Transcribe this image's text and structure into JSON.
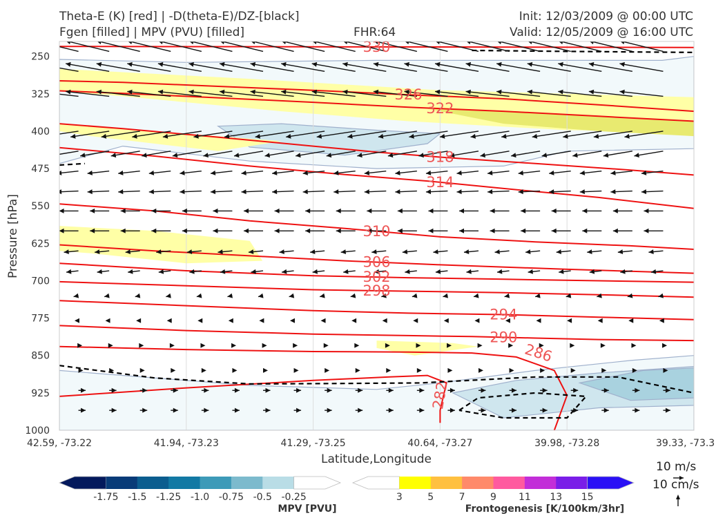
{
  "header": {
    "title_line1": "Theta-E (K) [red] | -D(theta-E)/DZ-[black]",
    "title_line2": "Fgen [filled] | MPV (PVU) [filled]",
    "fhr": "FHR:64",
    "init": "Init: 12/03/2009 @ 00:00 UTC",
    "valid": "Valid: 12/05/2009 @ 16:00 UTC"
  },
  "chart_data": {
    "type": "cross-section",
    "xlabel": "Latitude,Longitude",
    "ylabel": "Pressure [hPa]",
    "x_ticks": [
      "42.59, -73.22",
      "41.94, -73.23",
      "41.29, -73.25",
      "40.64, -73.27",
      "39.98, -73.28",
      "39.33, -73.3"
    ],
    "y_ticks": [
      250,
      325,
      400,
      475,
      550,
      625,
      700,
      775,
      850,
      925,
      1000
    ],
    "ylim": [
      1000,
      220
    ],
    "theta_e_contours": [
      {
        "label": "330",
        "points": [
          [
            0,
            230
          ],
          [
            0.5,
            231
          ],
          [
            1,
            232
          ]
        ]
      },
      {
        "label": "326",
        "points": [
          [
            0,
            299
          ],
          [
            0.1,
            302
          ],
          [
            0.25,
            310
          ],
          [
            0.4,
            318
          ],
          [
            0.55,
            327
          ],
          [
            0.7,
            335
          ],
          [
            0.85,
            347
          ],
          [
            1,
            360
          ]
        ]
      },
      {
        "label": "322",
        "points": [
          [
            0,
            319
          ],
          [
            0.1,
            324
          ],
          [
            0.25,
            333
          ],
          [
            0.4,
            342
          ],
          [
            0.55,
            352
          ],
          [
            0.7,
            360
          ],
          [
            0.85,
            370
          ],
          [
            1,
            380
          ]
        ]
      },
      {
        "label": "318",
        "points": [
          [
            0,
            385
          ],
          [
            0.1,
            395
          ],
          [
            0.25,
            412
          ],
          [
            0.4,
            430
          ],
          [
            0.5,
            442
          ],
          [
            0.6,
            452
          ],
          [
            0.75,
            465
          ],
          [
            0.9,
            478
          ],
          [
            1,
            488
          ]
        ]
      },
      {
        "label": "314",
        "points": [
          [
            0,
            433
          ],
          [
            0.15,
            450
          ],
          [
            0.3,
            470
          ],
          [
            0.45,
            487
          ],
          [
            0.58,
            500
          ],
          [
            0.7,
            515
          ],
          [
            0.85,
            533
          ],
          [
            1,
            555
          ]
        ]
      },
      {
        "label": "310",
        "points": [
          [
            0,
            546
          ],
          [
            0.15,
            560
          ],
          [
            0.3,
            580
          ],
          [
            0.45,
            595
          ],
          [
            0.6,
            612
          ],
          [
            0.75,
            622
          ],
          [
            0.9,
            630
          ],
          [
            1,
            637
          ]
        ]
      },
      {
        "label": "306",
        "points": [
          [
            0,
            628
          ],
          [
            0.15,
            640
          ],
          [
            0.3,
            650
          ],
          [
            0.45,
            660
          ],
          [
            0.6,
            668
          ],
          [
            0.8,
            677
          ],
          [
            1,
            685
          ]
        ]
      },
      {
        "label": "302",
        "points": [
          [
            0,
            665
          ],
          [
            0.2,
            680
          ],
          [
            0.4,
            690
          ],
          [
            0.55,
            694
          ],
          [
            0.7,
            697
          ],
          [
            0.85,
            700
          ],
          [
            1,
            703
          ]
        ]
      },
      {
        "label": "298",
        "points": [
          [
            0,
            702
          ],
          [
            0.2,
            710
          ],
          [
            0.4,
            718
          ],
          [
            0.55,
            721
          ],
          [
            0.7,
            724
          ],
          [
            0.85,
            728
          ],
          [
            1,
            733
          ]
        ]
      },
      {
        "label": "294",
        "points": [
          [
            0,
            740
          ],
          [
            0.2,
            750
          ],
          [
            0.4,
            760
          ],
          [
            0.55,
            765
          ],
          [
            0.7,
            768
          ],
          [
            0.85,
            773
          ],
          [
            1,
            778
          ]
        ]
      },
      {
        "label": "290",
        "points": [
          [
            0,
            790
          ],
          [
            0.2,
            800
          ],
          [
            0.4,
            807
          ],
          [
            0.55,
            810
          ],
          [
            0.65,
            812
          ],
          [
            0.75,
            815
          ],
          [
            0.85,
            818
          ],
          [
            1,
            820
          ]
        ]
      },
      {
        "label": "286",
        "points": [
          [
            0,
            832
          ],
          [
            0.2,
            838
          ],
          [
            0.4,
            842
          ],
          [
            0.55,
            843
          ],
          [
            0.65,
            845
          ],
          [
            0.72,
            853
          ],
          [
            0.78,
            880
          ],
          [
            0.8,
            930
          ],
          [
            0.78,
            1000
          ]
        ]
      },
      {
        "label": "282",
        "points": [
          [
            0,
            932
          ],
          [
            0.2,
            915
          ],
          [
            0.4,
            900
          ],
          [
            0.52,
            893
          ],
          [
            0.58,
            890
          ],
          [
            0.61,
            905
          ],
          [
            0.6,
            960
          ],
          [
            0.6,
            985
          ]
        ]
      }
    ],
    "stability_dashed": [
      [
        [
          0.65,
          238
        ],
        [
          0.8,
          240
        ],
        [
          1,
          242
        ]
      ],
      [
        [
          0,
          468
        ],
        [
          0.04,
          465
        ]
      ],
      [
        [
          0,
          870
        ],
        [
          0.15,
          895
        ],
        [
          0.3,
          907
        ],
        [
          0.45,
          906
        ],
        [
          0.57,
          905
        ],
        [
          0.75,
          893
        ],
        [
          0.88,
          893
        ],
        [
          1,
          925
        ]
      ],
      [
        [
          0.63,
          960
        ],
        [
          0.66,
          935
        ],
        [
          0.75,
          925
        ],
        [
          0.83,
          932
        ],
        [
          0.8,
          975
        ],
        [
          0.7,
          975
        ],
        [
          0.63,
          960
        ]
      ]
    ],
    "mpv_regions": [
      {
        "level": "-0.25",
        "color": "#f2f9fb",
        "points": [
          [
            0,
            256
          ],
          [
            0.2,
            262
          ],
          [
            0.5,
            258
          ],
          [
            0.95,
            258
          ],
          [
            1,
            250
          ],
          [
            1,
            435
          ],
          [
            0.8,
            440
          ],
          [
            0.7,
            470
          ],
          [
            0.5,
            475
          ],
          [
            0.3,
            460
          ],
          [
            0.1,
            430
          ],
          [
            0,
            465
          ]
        ]
      },
      {
        "level": "-0.25",
        "color": "#f2f9fb",
        "points": [
          [
            0,
            880
          ],
          [
            0.3,
            910
          ],
          [
            0.5,
            918
          ],
          [
            0.6,
            905
          ],
          [
            0.75,
            880
          ],
          [
            0.9,
            860
          ],
          [
            1,
            850
          ],
          [
            1,
            1000
          ],
          [
            0,
            1000
          ]
        ]
      },
      {
        "level": "-0.5",
        "color": "#cfe6ee",
        "points": [
          [
            0.25,
            390
          ],
          [
            0.35,
            385
          ],
          [
            0.5,
            398
          ],
          [
            0.6,
            405
          ],
          [
            0.58,
            425
          ],
          [
            0.45,
            448
          ],
          [
            0.3,
            432
          ]
        ]
      },
      {
        "level": "-0.5",
        "color": "#cfe6ee",
        "points": [
          [
            0.62,
            925
          ],
          [
            0.72,
            900
          ],
          [
            0.85,
            885
          ],
          [
            1,
            872
          ],
          [
            1,
            950
          ],
          [
            0.85,
            955
          ],
          [
            0.7,
            975
          ]
        ]
      },
      {
        "level": "-0.75",
        "color": "#a9d2df",
        "points": [
          [
            0.82,
            905
          ],
          [
            0.92,
            880
          ],
          [
            1,
            875
          ],
          [
            1,
            935
          ],
          [
            0.9,
            940
          ]
        ]
      }
    ],
    "fgen_regions": [
      {
        "level": "3",
        "color": "#ffffa6",
        "points": [
          [
            0,
            275
          ],
          [
            0.3,
            295
          ],
          [
            0.6,
            318
          ],
          [
            0.8,
            325
          ],
          [
            1,
            332
          ],
          [
            1,
            400
          ],
          [
            0.8,
            398
          ],
          [
            0.55,
            380
          ],
          [
            0.35,
            360
          ],
          [
            0.1,
            330
          ],
          [
            0,
            320
          ]
        ]
      },
      {
        "level": "3",
        "color": "#ffffa6",
        "points": [
          [
            0,
            385
          ],
          [
            0.15,
            400
          ],
          [
            0.35,
            420
          ],
          [
            0.25,
            440
          ],
          [
            0.05,
            410
          ],
          [
            0,
            400
          ]
        ]
      },
      {
        "level": "3",
        "color": "#ffffa6",
        "points": [
          [
            0,
            590
          ],
          [
            0.15,
            600
          ],
          [
            0.3,
            620
          ],
          [
            0.32,
            660
          ],
          [
            0.2,
            665
          ],
          [
            0.05,
            645
          ],
          [
            0,
            640
          ]
        ]
      },
      {
        "level": "3",
        "color": "#ffffa6",
        "points": [
          [
            0.5,
            820
          ],
          [
            0.62,
            825
          ],
          [
            0.66,
            832
          ],
          [
            0.56,
            850
          ],
          [
            0.5,
            835
          ]
        ]
      },
      {
        "level": "5",
        "color": "#e8ea70",
        "points": [
          [
            0.58,
            355
          ],
          [
            0.72,
            360
          ],
          [
            0.85,
            370
          ],
          [
            1,
            380
          ],
          [
            1,
            410
          ],
          [
            0.85,
            400
          ],
          [
            0.7,
            385
          ]
        ]
      }
    ],
    "wind_arrow_rows": [
      {
        "p": 240,
        "u": -0.9,
        "w": -0.22
      },
      {
        "p": 280,
        "u": -0.9,
        "w": -0.16
      },
      {
        "p": 330,
        "u": -0.9,
        "w": -0.1
      },
      {
        "p": 400,
        "u": -0.8,
        "w": 0.12
      },
      {
        "p": 440,
        "u": -0.6,
        "w": 0.1
      },
      {
        "p": 480,
        "u": -0.45,
        "w": 0.05
      },
      {
        "p": 520,
        "u": -0.45,
        "w": 0.02
      },
      {
        "p": 560,
        "u": -0.4,
        "w": 0
      },
      {
        "p": 600,
        "u": -0.4,
        "w": 0
      },
      {
        "p": 640,
        "u": -0.3,
        "w": 0.03
      },
      {
        "p": 680,
        "u": -0.25,
        "w": 0.03
      },
      {
        "p": 730,
        "u": -0.1,
        "w": 0.02
      },
      {
        "p": 780,
        "u": -0.08,
        "w": 0
      },
      {
        "p": 830,
        "u": 0.08,
        "w": 0
      },
      {
        "p": 880,
        "u": 0.1,
        "w": 0
      },
      {
        "p": 920,
        "u": 0.15,
        "w": 0
      },
      {
        "p": 960,
        "u": 0.15,
        "w": 0
      }
    ],
    "mpv_colorbar": {
      "title": "MPV [PVU]",
      "ticks": [
        "-1.75",
        "-1.5",
        "-1.25",
        "-1.0",
        "-0.75",
        "-0.5",
        "-0.25"
      ],
      "colors": [
        "#03195c",
        "#083b78",
        "#0b5d8f",
        "#1279a4",
        "#3d9ab8",
        "#7cbacd",
        "#b9dde6",
        "#ffffff"
      ]
    },
    "fgen_colorbar": {
      "title": "Frontogenesis [K/100km/3hr]",
      "ticks": [
        "3",
        "5",
        "7",
        "9",
        "11",
        "13",
        "15"
      ],
      "colors": [
        "#ffffff",
        "#ffff00",
        "#ffc040",
        "#ff8a6a",
        "#ff5a9f",
        "#c22ed8",
        "#7a1ee8",
        "#2a10f5"
      ]
    },
    "quiver_keys": {
      "horizontal": "10 m/s",
      "vertical": "10 cm/s"
    }
  }
}
